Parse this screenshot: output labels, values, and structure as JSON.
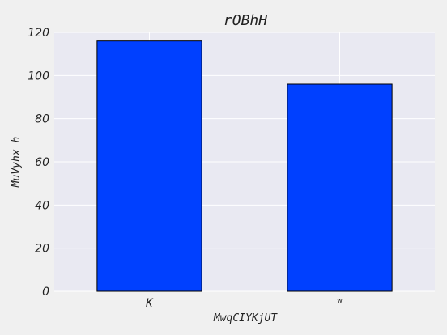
{
  "chart_data": {
    "type": "bar",
    "title": "rOBhH",
    "xlabel": "MwqCIYKjUT",
    "ylabel": "MuVyhx h",
    "categories": [
      "K",
      "w"
    ],
    "values": [
      116,
      96
    ],
    "ylim": [
      0,
      120
    ],
    "yticks": [
      0,
      20,
      40,
      60,
      80,
      100,
      120
    ],
    "grid": true,
    "colors": {
      "bar": "#0040ff",
      "bar_edge": "#000000",
      "plot_bg": "#e9e9f2",
      "grid": "#ffffff"
    }
  }
}
